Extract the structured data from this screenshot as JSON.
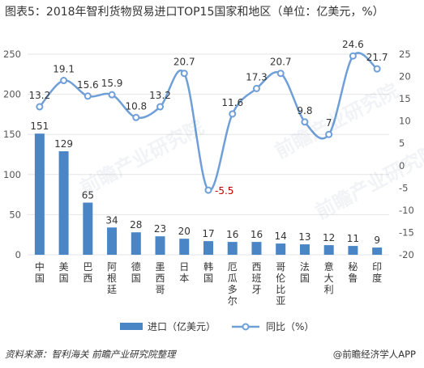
{
  "title": "图表5：2018年智利货物贸易进口TOP15国家和地区（单位：亿美元，%）",
  "footer_source": "资料来源：智利海关  前瞻产业研究院整理",
  "footer_brand": "@前瞻经济学人APP",
  "watermark": "前瞻产业研究院",
  "colors": {
    "bar": "#4a86c6",
    "line": "#6f9fd8",
    "marker_fill": "#ffffff",
    "negative_label": "#c00000",
    "grid": "#e6e6e6"
  },
  "chart_data": {
    "type": "bar",
    "categories": [
      "中国",
      "美国",
      "巴西",
      "阿根廷",
      "德国",
      "墨西哥",
      "日本",
      "韩国",
      "厄瓜多尔",
      "西班牙",
      "哥伦比亚",
      "法国",
      "意大利",
      "秘鲁",
      "印度"
    ],
    "series": [
      {
        "name": "进口（亿美元）",
        "type": "bar",
        "axis": "left",
        "values": [
          151,
          129,
          65,
          34,
          28,
          23,
          20,
          17,
          16,
          16,
          14,
          13,
          12,
          11,
          9
        ]
      },
      {
        "name": "同比（%）",
        "type": "line",
        "axis": "right",
        "values": [
          13.2,
          19.1,
          15.6,
          15.9,
          10.8,
          13.2,
          20.7,
          -5.5,
          11.6,
          17.3,
          20.7,
          9.8,
          7,
          24.6,
          21.7
        ]
      }
    ],
    "left_axis": {
      "min": 0,
      "max": 250,
      "ticks": [
        0,
        50,
        100,
        150,
        200,
        250
      ]
    },
    "right_axis": {
      "min": -20,
      "max": 25,
      "ticks": [
        -20,
        -15,
        -10,
        -5,
        0,
        5,
        10,
        15,
        20,
        25
      ]
    },
    "grid": true,
    "legend_position": "bottom"
  }
}
